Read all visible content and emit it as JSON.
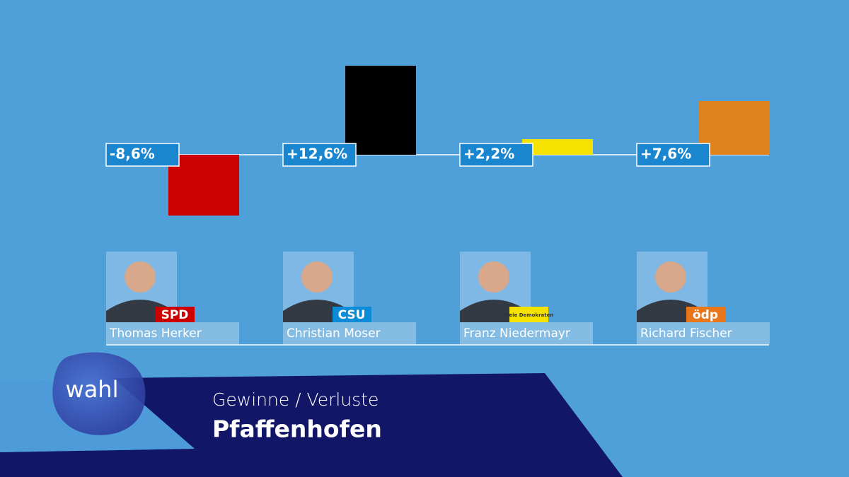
{
  "chart_data": {
    "type": "bar",
    "title": "Gewinne / Verluste",
    "subtitle": "Pfaffenhofen",
    "logo": "wahl",
    "categories": [
      "Thomas Herker",
      "Christian Moser",
      "Franz Niedermayr",
      "Richard Fischer"
    ],
    "parties": [
      "SPD",
      "CSU",
      "Freie Demokraten",
      "ödp"
    ],
    "party_colors": [
      "#cc0000",
      "#0a8dd6",
      "#f5e200",
      "#e9771a"
    ],
    "values": [
      -8.6,
      12.6,
      2.2,
      7.6
    ],
    "value_labels": [
      "-8,6%",
      "+12,6%",
      "+2,2%",
      "+7,6%"
    ],
    "colors": [
      "#cc0000",
      "#000000",
      "#f5e200",
      "#e0821e"
    ]
  }
}
